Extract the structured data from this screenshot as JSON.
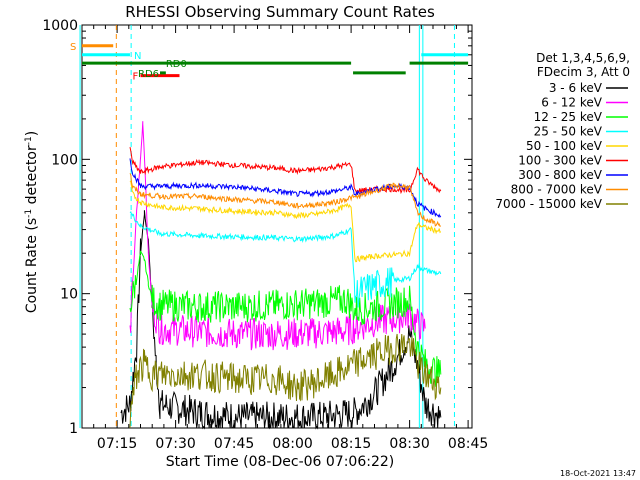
{
  "chart_data": {
    "type": "line",
    "title": "RHESSI Observing Summary Count Rates",
    "xlabel": "Start Time (08-Dec-06 07:06:22)",
    "ylabel_main": "Count Rate (s",
    "ylabel_exp1": "-1",
    "ylabel_mid": " detector",
    "ylabel_exp2": "-1",
    "ylabel_end": ")",
    "ylog": true,
    "ylim": [
      1,
      1000
    ],
    "xlim_minutes": [
      0,
      100
    ],
    "yticks": [
      {
        "value": 1,
        "label": "1"
      },
      {
        "value": 10,
        "label": "10"
      },
      {
        "value": 100,
        "label": "100"
      },
      {
        "value": 1000,
        "label": "1000"
      }
    ],
    "xticks": [
      {
        "min": 9,
        "label": "07:15"
      },
      {
        "min": 24,
        "label": "07:30"
      },
      {
        "min": 39,
        "label": "07:45"
      },
      {
        "min": 54,
        "label": "08:00"
      },
      {
        "min": 69,
        "label": "08:15"
      },
      {
        "min": 84,
        "label": "08:30"
      },
      {
        "min": 99,
        "label": "08:45"
      }
    ],
    "legend_header": [
      "Det 1,3,4,5,6,9,",
      "FDecim 3, Att 0"
    ],
    "series": [
      {
        "name": "3 - 6 keV",
        "color": "#000000",
        "points": [
          [
            10,
            1.3
          ],
          [
            12.3,
            1.5
          ],
          [
            14,
            4
          ],
          [
            15,
            20
          ],
          [
            16,
            40
          ],
          [
            17,
            25
          ],
          [
            18,
            8
          ],
          [
            19,
            3
          ],
          [
            20,
            1.5
          ],
          [
            30,
            1.3
          ],
          [
            40,
            1.2
          ],
          [
            50,
            1.2
          ],
          [
            60,
            1.2
          ],
          [
            70,
            1.3
          ],
          [
            75,
            1.8
          ],
          [
            80,
            3
          ],
          [
            84,
            5
          ],
          [
            86,
            3
          ],
          [
            88,
            1.5
          ],
          [
            92,
            1.2
          ]
        ]
      },
      {
        "name": "6 - 12 keV",
        "color": "#ff00ff",
        "points": [
          [
            12.3,
            5
          ],
          [
            13,
            12
          ],
          [
            14,
            40
          ],
          [
            15,
            100
          ],
          [
            15.6,
            190
          ],
          [
            16.2,
            80
          ],
          [
            17,
            20
          ],
          [
            18,
            8
          ],
          [
            20,
            5.5
          ],
          [
            30,
            5.2
          ],
          [
            40,
            5
          ],
          [
            50,
            5
          ],
          [
            60,
            5.1
          ],
          [
            68,
            5.3
          ],
          [
            70,
            5.6
          ],
          [
            75,
            6.2
          ],
          [
            80,
            6.5
          ],
          [
            84,
            7
          ],
          [
            86,
            6
          ],
          [
            88,
            5.5
          ]
        ]
      },
      {
        "name": "12 - 25 keV",
        "color": "#00ff00",
        "points": [
          [
            12.3,
            8
          ],
          [
            14,
            13
          ],
          [
            15,
            20
          ],
          [
            16,
            18
          ],
          [
            17,
            12
          ],
          [
            18,
            9
          ],
          [
            20,
            8.2
          ],
          [
            30,
            8
          ],
          [
            40,
            8
          ],
          [
            50,
            8.2
          ],
          [
            60,
            8.5
          ],
          [
            68,
            9
          ],
          [
            70,
            7.5
          ],
          [
            75,
            8
          ],
          [
            80,
            8.5
          ],
          [
            84,
            9
          ],
          [
            86,
            4
          ],
          [
            88,
            3
          ],
          [
            92,
            2.5
          ]
        ]
      },
      {
        "name": "25 - 50 keV",
        "color": "#00ffff",
        "points": [
          [
            12.3,
            42
          ],
          [
            13,
            38
          ],
          [
            15,
            32
          ],
          [
            20,
            28
          ],
          [
            30,
            27
          ],
          [
            40,
            26.5
          ],
          [
            50,
            26
          ],
          [
            55,
            25.5
          ],
          [
            60,
            26
          ],
          [
            65,
            27
          ],
          [
            69,
            30
          ],
          [
            70,
            10
          ],
          [
            75,
            11.5
          ],
          [
            80,
            12.5
          ],
          [
            84,
            13
          ],
          [
            86,
            16
          ],
          [
            88,
            15
          ],
          [
            92,
            14
          ]
        ]
      },
      {
        "name": "50 - 100 keV",
        "color": "#ffd700",
        "points": [
          [
            12.3,
            70
          ],
          [
            13,
            55
          ],
          [
            15,
            48
          ],
          [
            20,
            44
          ],
          [
            30,
            43
          ],
          [
            40,
            41
          ],
          [
            50,
            40
          ],
          [
            55,
            38
          ],
          [
            60,
            39
          ],
          [
            65,
            42
          ],
          [
            69,
            46
          ],
          [
            70,
            18
          ],
          [
            75,
            19
          ],
          [
            80,
            19.5
          ],
          [
            84,
            20
          ],
          [
            86,
            33
          ],
          [
            88,
            31
          ],
          [
            92,
            29
          ]
        ]
      },
      {
        "name": "100 - 300 keV",
        "color": "#ff0000",
        "points": [
          [
            12.3,
            120
          ],
          [
            13,
            95
          ],
          [
            15,
            80
          ],
          [
            20,
            88
          ],
          [
            30,
            95
          ],
          [
            40,
            90
          ],
          [
            50,
            86
          ],
          [
            55,
            82
          ],
          [
            60,
            84
          ],
          [
            65,
            88
          ],
          [
            69,
            92
          ],
          [
            70,
            58
          ],
          [
            75,
            60
          ],
          [
            80,
            60
          ],
          [
            84,
            58
          ],
          [
            86,
            85
          ],
          [
            88,
            70
          ],
          [
            92,
            58
          ]
        ]
      },
      {
        "name": "300 - 800 keV",
        "color": "#0000ff",
        "points": [
          [
            12.3,
            100
          ],
          [
            13,
            80
          ],
          [
            15,
            63
          ],
          [
            20,
            63
          ],
          [
            30,
            64
          ],
          [
            40,
            62
          ],
          [
            50,
            58
          ],
          [
            55,
            55
          ],
          [
            60,
            56
          ],
          [
            65,
            58
          ],
          [
            69,
            62
          ],
          [
            70,
            55
          ],
          [
            75,
            60
          ],
          [
            80,
            63
          ],
          [
            84,
            62
          ],
          [
            86,
            47
          ],
          [
            88,
            43
          ],
          [
            92,
            38
          ]
        ]
      },
      {
        "name": "800 - 7000 keV",
        "color": "#ff8c00",
        "points": [
          [
            12.3,
            80
          ],
          [
            13,
            62
          ],
          [
            15,
            55
          ],
          [
            20,
            53
          ],
          [
            30,
            53
          ],
          [
            40,
            50
          ],
          [
            50,
            48
          ],
          [
            55,
            45
          ],
          [
            60,
            46
          ],
          [
            65,
            48
          ],
          [
            69,
            52
          ],
          [
            70,
            52
          ],
          [
            75,
            58
          ],
          [
            80,
            64
          ],
          [
            84,
            62
          ],
          [
            86,
            40
          ],
          [
            88,
            36
          ],
          [
            92,
            32
          ]
        ]
      },
      {
        "name": "7000 - 15000 keV",
        "color": "#808000",
        "points": [
          [
            12.3,
            1.2
          ],
          [
            14,
            2.5
          ],
          [
            16,
            3
          ],
          [
            18,
            2.5
          ],
          [
            20,
            2.5
          ],
          [
            30,
            2.5
          ],
          [
            40,
            2.3
          ],
          [
            50,
            2.3
          ],
          [
            55,
            2
          ],
          [
            60,
            2.2
          ],
          [
            65,
            2.5
          ],
          [
            70,
            3
          ],
          [
            75,
            3.5
          ],
          [
            80,
            4
          ],
          [
            84,
            4.2
          ],
          [
            86,
            3
          ],
          [
            88,
            2.5
          ],
          [
            92,
            2
          ]
        ]
      }
    ],
    "flags": [
      {
        "label": "S",
        "color": "#ff8c00",
        "row_value": 700,
        "start": 0,
        "end": 8
      },
      {
        "label": "N",
        "color": "#00ffff",
        "row_value": 600,
        "start": 0,
        "end": 12.3,
        "extra": [
          [
            87,
            99
          ]
        ]
      },
      {
        "label": "F",
        "color": "#ff0000",
        "row_value": 420,
        "start": 15,
        "end": 25
      },
      {
        "label": "RD0",
        "color": "#008000",
        "row_value": 520,
        "start": 0,
        "end": 69,
        "extra": [
          [
            84,
            99
          ]
        ]
      },
      {
        "label": "RD6",
        "color": "#008000",
        "row_value": 440,
        "start": 20,
        "end": 21.5
      }
    ],
    "segment_extra": {
      "RD0_mid": [
        [
          69.5,
          83
        ]
      ]
    },
    "vlines_dashed": [
      {
        "min": 8.8,
        "color": "#ff8c00"
      },
      {
        "min": 12.6,
        "color": "#00ffff"
      },
      {
        "min": 95.5,
        "color": "#00ffff"
      }
    ],
    "vlines_solid": [
      {
        "min": -0.5,
        "color": "#00ffff"
      },
      {
        "min": 86.5,
        "color": "#00ffff"
      },
      {
        "min": 87.4,
        "color": "#00ffff"
      }
    ],
    "footer_date": "18-Oct-2021 13:47"
  }
}
